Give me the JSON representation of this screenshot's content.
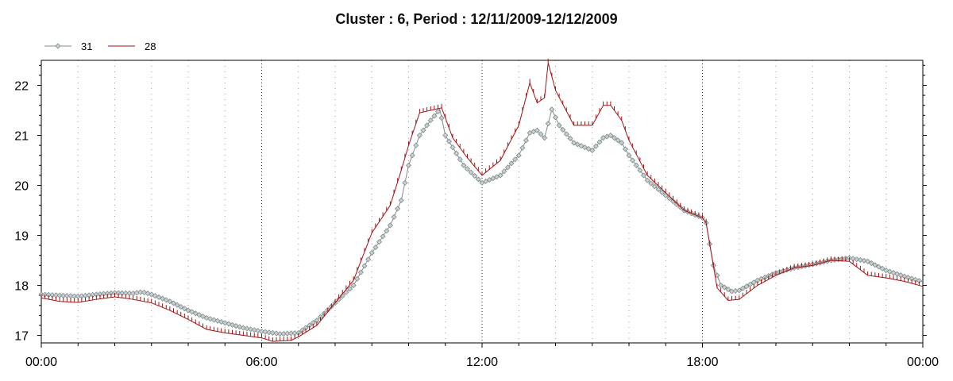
{
  "chart_data": {
    "type": "line",
    "title": "Cluster : 6, Period : 12/11/2009-12/12/2009",
    "xlabel": "",
    "ylabel": "",
    "x_ticks": [
      "00:00",
      "06:00",
      "12:00",
      "18:00",
      "00:00"
    ],
    "xlim_hours": [
      0,
      24
    ],
    "ylim": [
      16.85,
      22.5
    ],
    "y_ticks": [
      17,
      18,
      19,
      20,
      21,
      22
    ],
    "grid": "vertical dotted",
    "legend_position": "top-left",
    "series": [
      {
        "name": "31",
        "color": "#7f8c8d",
        "marker": "diamond",
        "points": [
          [
            0.0,
            17.82
          ],
          [
            0.5,
            17.8
          ],
          [
            1.0,
            17.78
          ],
          [
            1.5,
            17.82
          ],
          [
            2.0,
            17.85
          ],
          [
            2.5,
            17.84
          ],
          [
            2.75,
            17.87
          ],
          [
            3.0,
            17.82
          ],
          [
            3.5,
            17.68
          ],
          [
            4.0,
            17.5
          ],
          [
            4.5,
            17.35
          ],
          [
            5.0,
            17.25
          ],
          [
            5.5,
            17.15
          ],
          [
            6.0,
            17.08
          ],
          [
            6.5,
            17.03
          ],
          [
            7.0,
            17.05
          ],
          [
            7.5,
            17.3
          ],
          [
            8.0,
            17.65
          ],
          [
            8.5,
            18.0
          ],
          [
            9.0,
            18.65
          ],
          [
            9.5,
            19.2
          ],
          [
            9.8,
            19.7
          ],
          [
            10.0,
            20.4
          ],
          [
            10.3,
            21.0
          ],
          [
            10.6,
            21.3
          ],
          [
            10.85,
            21.52
          ],
          [
            11.0,
            21.0
          ],
          [
            11.5,
            20.4
          ],
          [
            12.0,
            20.05
          ],
          [
            12.5,
            20.2
          ],
          [
            13.0,
            20.6
          ],
          [
            13.3,
            21.05
          ],
          [
            13.5,
            21.1
          ],
          [
            13.7,
            20.95
          ],
          [
            13.9,
            21.52
          ],
          [
            14.1,
            21.2
          ],
          [
            14.5,
            20.85
          ],
          [
            15.0,
            20.7
          ],
          [
            15.3,
            20.95
          ],
          [
            15.5,
            21.0
          ],
          [
            15.8,
            20.85
          ],
          [
            16.0,
            20.6
          ],
          [
            16.5,
            20.1
          ],
          [
            17.0,
            19.8
          ],
          [
            17.5,
            19.5
          ],
          [
            18.0,
            19.35
          ],
          [
            18.1,
            19.25
          ],
          [
            18.3,
            18.4
          ],
          [
            18.5,
            18.0
          ],
          [
            18.8,
            17.88
          ],
          [
            19.0,
            17.9
          ],
          [
            19.5,
            18.1
          ],
          [
            20.0,
            18.25
          ],
          [
            20.5,
            18.35
          ],
          [
            21.0,
            18.42
          ],
          [
            21.5,
            18.5
          ],
          [
            22.0,
            18.55
          ],
          [
            22.5,
            18.48
          ],
          [
            23.0,
            18.3
          ],
          [
            23.5,
            18.18
          ],
          [
            24.0,
            18.07
          ]
        ]
      },
      {
        "name": "28",
        "color": "#a01414",
        "marker": "tick",
        "points": [
          [
            0.0,
            17.75
          ],
          [
            0.5,
            17.68
          ],
          [
            1.0,
            17.66
          ],
          [
            1.5,
            17.72
          ],
          [
            2.0,
            17.77
          ],
          [
            2.5,
            17.72
          ],
          [
            3.0,
            17.65
          ],
          [
            3.5,
            17.5
          ],
          [
            4.0,
            17.32
          ],
          [
            4.5,
            17.12
          ],
          [
            5.0,
            17.05
          ],
          [
            5.5,
            17.0
          ],
          [
            6.0,
            16.95
          ],
          [
            6.3,
            16.88
          ],
          [
            6.8,
            16.9
          ],
          [
            7.0,
            16.97
          ],
          [
            7.5,
            17.2
          ],
          [
            8.0,
            17.65
          ],
          [
            8.5,
            18.1
          ],
          [
            9.0,
            19.05
          ],
          [
            9.5,
            19.6
          ],
          [
            9.8,
            20.3
          ],
          [
            10.0,
            20.8
          ],
          [
            10.3,
            21.45
          ],
          [
            10.6,
            21.5
          ],
          [
            10.9,
            21.55
          ],
          [
            11.2,
            20.95
          ],
          [
            11.6,
            20.55
          ],
          [
            12.0,
            20.2
          ],
          [
            12.5,
            20.5
          ],
          [
            13.0,
            21.2
          ],
          [
            13.3,
            22.05
          ],
          [
            13.5,
            21.65
          ],
          [
            13.7,
            21.75
          ],
          [
            13.8,
            22.45
          ],
          [
            14.0,
            21.9
          ],
          [
            14.5,
            21.2
          ],
          [
            15.0,
            21.2
          ],
          [
            15.3,
            21.6
          ],
          [
            15.5,
            21.6
          ],
          [
            15.8,
            21.3
          ],
          [
            16.0,
            20.9
          ],
          [
            16.5,
            20.2
          ],
          [
            17.0,
            19.85
          ],
          [
            17.5,
            19.5
          ],
          [
            18.0,
            19.35
          ],
          [
            18.1,
            19.25
          ],
          [
            18.4,
            17.95
          ],
          [
            18.7,
            17.7
          ],
          [
            19.0,
            17.72
          ],
          [
            19.5,
            18.0
          ],
          [
            20.0,
            18.2
          ],
          [
            20.5,
            18.35
          ],
          [
            21.0,
            18.4
          ],
          [
            21.5,
            18.5
          ],
          [
            22.0,
            18.48
          ],
          [
            22.5,
            18.2
          ],
          [
            23.0,
            18.15
          ],
          [
            23.5,
            18.08
          ],
          [
            24.0,
            17.98
          ]
        ]
      }
    ]
  }
}
